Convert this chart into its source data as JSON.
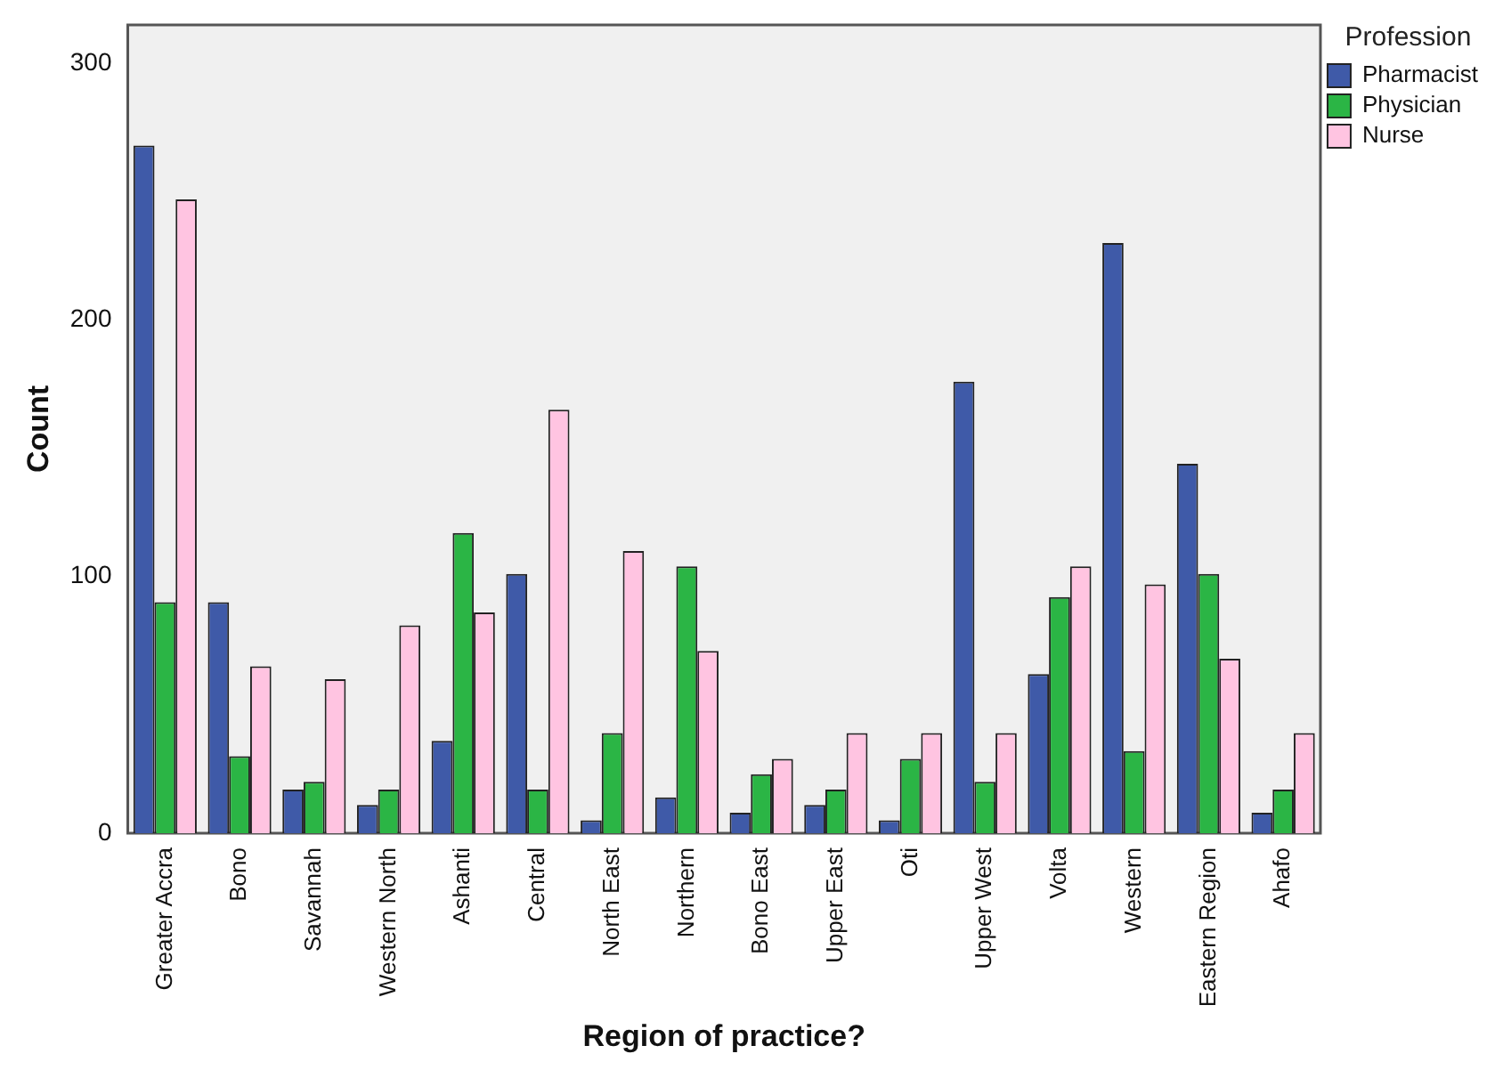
{
  "chart_data": {
    "type": "bar",
    "xlabel": "Region of practice?",
    "ylabel": "Count",
    "legend_title": "Profession",
    "legend": "top right",
    "grid": false,
    "categories": [
      "Greater Accra",
      "Bono",
      "Savannah",
      "Western North",
      "Ashanti",
      "Central",
      "North East",
      "Northern",
      "Bono East",
      "Upper East",
      "Oti",
      "Upper West",
      "Volta",
      "Western",
      "Eastern Region",
      "Ahafo"
    ],
    "series": [
      {
        "name": "Pharmacist",
        "color": "#3f5aa8",
        "values": [
          268,
          90,
          17,
          11,
          36,
          101,
          5,
          14,
          8,
          11,
          5,
          176,
          62,
          230,
          144,
          8
        ]
      },
      {
        "name": "Physician",
        "color": "#2bb545",
        "values": [
          90,
          30,
          20,
          17,
          117,
          17,
          39,
          104,
          23,
          17,
          29,
          20,
          92,
          32,
          101,
          17
        ]
      },
      {
        "name": "Nurse",
        "color": "#ffc4e1",
        "values": [
          247,
          65,
          60,
          81,
          86,
          165,
          110,
          71,
          29,
          39,
          39,
          39,
          104,
          97,
          68,
          39
        ]
      }
    ],
    "ylim": [
      0,
      315
    ],
    "yticks": [
      0,
      100,
      200,
      300
    ]
  }
}
